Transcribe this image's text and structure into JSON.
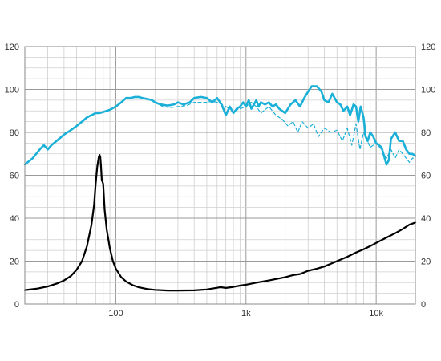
{
  "chart_data": {
    "type": "line",
    "title": "",
    "xlabel": "",
    "ylabel": "",
    "x_scale": "log",
    "xlim": [
      20,
      20000
    ],
    "ylim": [
      0,
      120
    ],
    "grid": true,
    "legend": "none",
    "x_tick_labels": [
      {
        "value": 100,
        "label": "100"
      },
      {
        "value": 1000,
        "label": "1k"
      },
      {
        "value": 10000,
        "label": "10k"
      }
    ],
    "y_tick_labels": [
      "0",
      "20",
      "40",
      "60",
      "80",
      "100",
      "120"
    ],
    "y_ticks": [
      0,
      20,
      40,
      60,
      80,
      100,
      120
    ],
    "series": [
      {
        "color": "#1ab0d8",
        "style": "solid",
        "x": [
          20,
          23,
          26,
          28,
          30,
          32,
          35,
          40,
          45,
          50,
          55,
          60,
          65,
          70,
          75,
          80,
          90,
          100,
          110,
          120,
          130,
          140,
          150,
          160,
          175,
          190,
          200,
          220,
          250,
          280,
          300,
          330,
          370,
          400,
          450,
          500,
          550,
          600,
          650,
          700,
          750,
          800,
          850,
          900,
          950,
          1000,
          1050,
          1100,
          1150,
          1200,
          1250,
          1300,
          1400,
          1500,
          1600,
          1700,
          1800,
          2000,
          2200,
          2400,
          2600,
          2800,
          3000,
          3200,
          3500,
          3800,
          4000,
          4300,
          4600,
          5000,
          5300,
          5600,
          6000,
          6300,
          6700,
          7000,
          7300,
          7600,
          8000,
          8300,
          8600,
          9000,
          9500,
          10000,
          11000,
          12000,
          12500,
          13000,
          14000,
          15000,
          16000,
          17000,
          18000,
          19000,
          20000
        ],
        "y": [
          65,
          68,
          72,
          74,
          72,
          74,
          76,
          79,
          81,
          83,
          85,
          87,
          88,
          89,
          89,
          89.5,
          90.5,
          92,
          94,
          96,
          96,
          96.5,
          96.5,
          96,
          95.5,
          95,
          94,
          93,
          92.5,
          93,
          94,
          93,
          94,
          96,
          96.5,
          96,
          94,
          96,
          93,
          88,
          92,
          89,
          91,
          92,
          94,
          92,
          95,
          91,
          93,
          95,
          92,
          94,
          93,
          94,
          92,
          93,
          91,
          89,
          93,
          95,
          92,
          96,
          99,
          101.5,
          101.5,
          99,
          95,
          94,
          98,
          94,
          93,
          90,
          92,
          88,
          93,
          92,
          85,
          92,
          87,
          78,
          76,
          80,
          78,
          75,
          73,
          65,
          67,
          77,
          80,
          76,
          76,
          72,
          70,
          70,
          69
        ]
      },
      {
        "color": "#1ab0d8",
        "style": "dashed",
        "x": [
          200,
          230,
          260,
          300,
          350,
          400,
          450,
          500,
          550,
          600,
          700,
          800,
          900,
          1000,
          1100,
          1200,
          1300,
          1500,
          1700,
          1900,
          2100,
          2300,
          2500,
          2700,
          3000,
          3300,
          3600,
          4000,
          4500,
          5000,
          5500,
          6000,
          6500,
          7000,
          7500,
          8000,
          9000,
          10000,
          11000,
          12000,
          13000,
          14000,
          15000,
          16000,
          17000,
          18000,
          19000,
          20000
        ],
        "y": [
          94,
          92,
          91.5,
          92,
          92.5,
          94,
          94,
          94,
          94.5,
          94,
          92,
          90,
          91,
          92,
          94,
          92,
          89,
          92,
          88,
          86,
          83,
          85,
          80,
          85,
          82,
          84,
          78,
          82,
          80,
          81,
          76,
          82,
          74,
          84,
          72,
          80,
          73,
          75,
          72,
          68,
          72,
          68,
          72,
          70,
          68,
          66,
          68,
          68
        ]
      },
      {
        "color": "#000000",
        "style": "solid",
        "x": [
          20,
          25,
          30,
          35,
          40,
          45,
          50,
          55,
          60,
          65,
          68,
          70,
          72,
          74,
          75,
          76,
          77,
          78,
          80,
          82,
          85,
          90,
          95,
          100,
          110,
          120,
          135,
          150,
          175,
          200,
          250,
          300,
          400,
          500,
          550,
          600,
          630,
          650,
          700,
          800,
          900,
          1000,
          1200,
          1500,
          2000,
          2300,
          2600,
          3000,
          3500,
          4000,
          5000,
          6000,
          7000,
          8000,
          9000,
          10000,
          12000,
          14000,
          16000,
          18000,
          20000
        ],
        "y": [
          6.5,
          7.2,
          8.2,
          9.5,
          11,
          13,
          16,
          20,
          27,
          37,
          46,
          56,
          64,
          68.5,
          69.5,
          68.5,
          64,
          58,
          56,
          44,
          35,
          26,
          20,
          16.5,
          12.5,
          10.5,
          8.8,
          7.8,
          7,
          6.6,
          6.3,
          6.3,
          6.4,
          6.8,
          7.2,
          7.6,
          7.8,
          7.8,
          7.5,
          8,
          8.6,
          9,
          10,
          11,
          12.5,
          13.5,
          14,
          15.5,
          16.5,
          17.5,
          20,
          22,
          24,
          25.5,
          27,
          28.5,
          31,
          33,
          35,
          37,
          38
        ]
      }
    ]
  }
}
